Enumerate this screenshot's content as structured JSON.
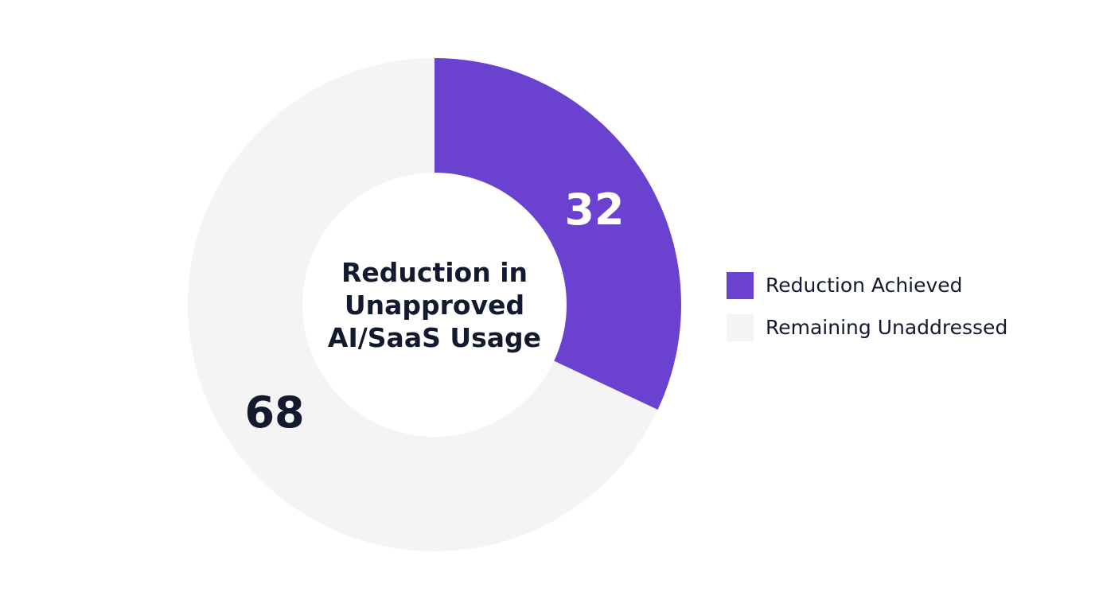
{
  "chart_data": {
    "type": "donut",
    "title": "Reduction in Unapproved AI/SaaS Usage",
    "categories": [
      "Reduction Achieved",
      "Remaining Unaddressed"
    ],
    "values": [
      32,
      68
    ],
    "colors": [
      "#6b41d0",
      "#f4f4f4"
    ],
    "label_colors": [
      "#ffffff",
      "#111a2e"
    ],
    "legend": "right"
  }
}
